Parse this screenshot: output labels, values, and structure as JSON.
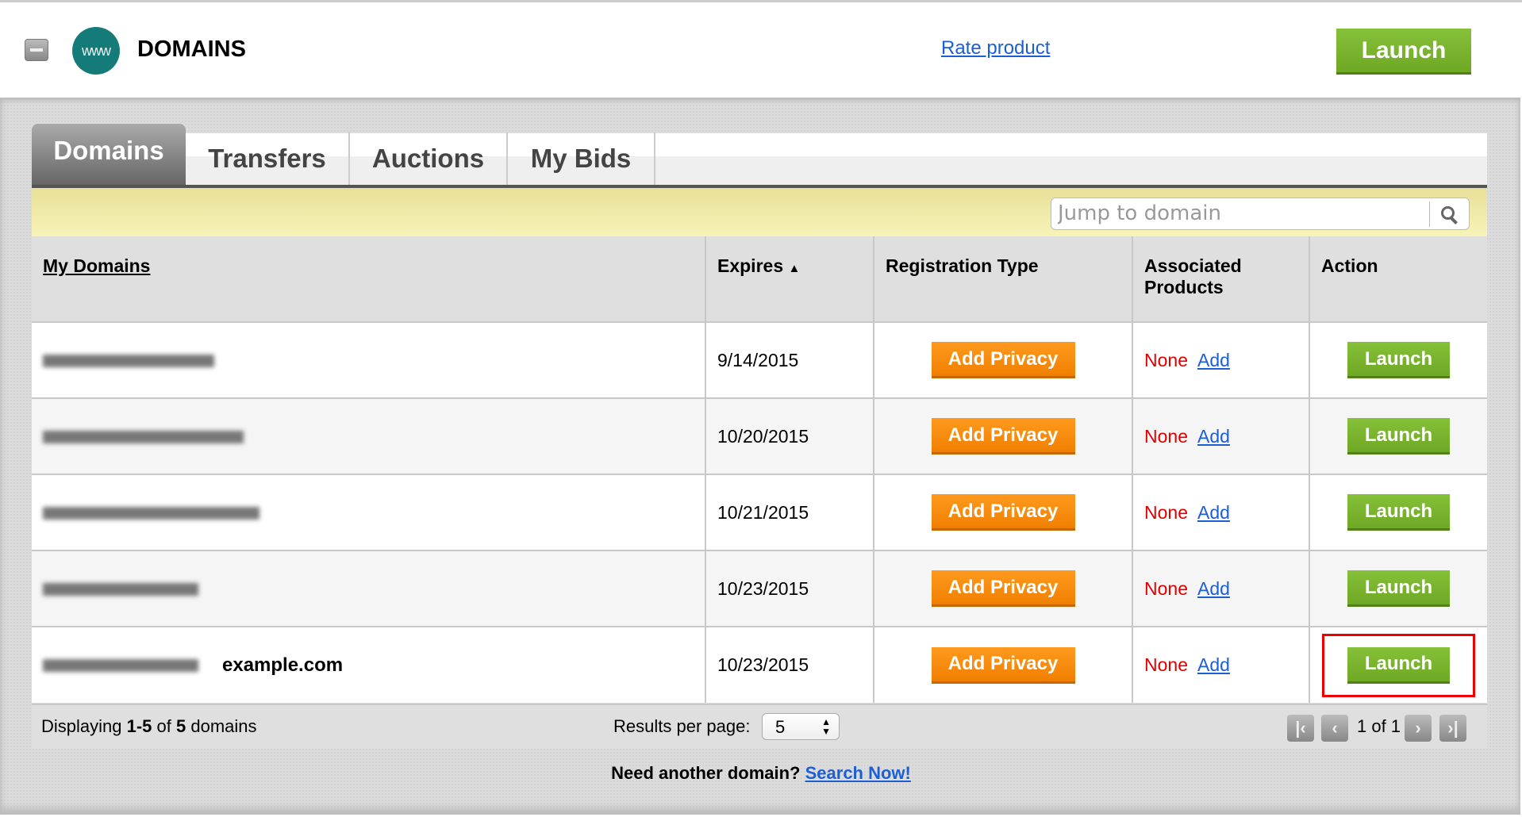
{
  "header": {
    "title": "DOMAINS",
    "logo_text": "www",
    "rate_link": "Rate product",
    "launch_label": "Launch"
  },
  "tabs": [
    {
      "label": "Domains",
      "active": true
    },
    {
      "label": "Transfers"
    },
    {
      "label": "Auctions"
    },
    {
      "label": "My Bids"
    }
  ],
  "search": {
    "placeholder": "Jump to domain"
  },
  "table": {
    "columns": [
      "My Domains",
      "Expires",
      "Registration Type",
      "Associated Products",
      "Action"
    ],
    "sort_indicator": "▲",
    "rows": [
      {
        "domain_note": "",
        "expires": "9/14/2015",
        "registration": "Add Privacy",
        "products": "None",
        "add": "Add",
        "action": "Launch"
      },
      {
        "domain_note": "",
        "expires": "10/20/2015",
        "registration": "Add Privacy",
        "products": "None",
        "add": "Add",
        "action": "Launch"
      },
      {
        "domain_note": "",
        "expires": "10/21/2015",
        "registration": "Add Privacy",
        "products": "None",
        "add": "Add",
        "action": "Launch"
      },
      {
        "domain_note": "",
        "expires": "10/23/2015",
        "registration": "Add Privacy",
        "products": "None",
        "add": "Add",
        "action": "Launch"
      },
      {
        "domain_note": "example.com",
        "expires": "10/23/2015",
        "registration": "Add Privacy",
        "products": "None",
        "add": "Add",
        "action": "Launch",
        "highlighted": true
      }
    ]
  },
  "footer": {
    "displaying_prefix": "Displaying ",
    "range": "1-5",
    "of": " of ",
    "total": "5",
    "suffix": " domains",
    "results_label": "Results per page:",
    "results_value": "5",
    "page_info": "1 of 1"
  },
  "bottom": {
    "text": "Need another domain? ",
    "link": "Search Now!"
  },
  "colors": {
    "green": "#78b32e",
    "orange": "#f58a0b",
    "highlight": "#e00000",
    "teal": "#147b78"
  }
}
